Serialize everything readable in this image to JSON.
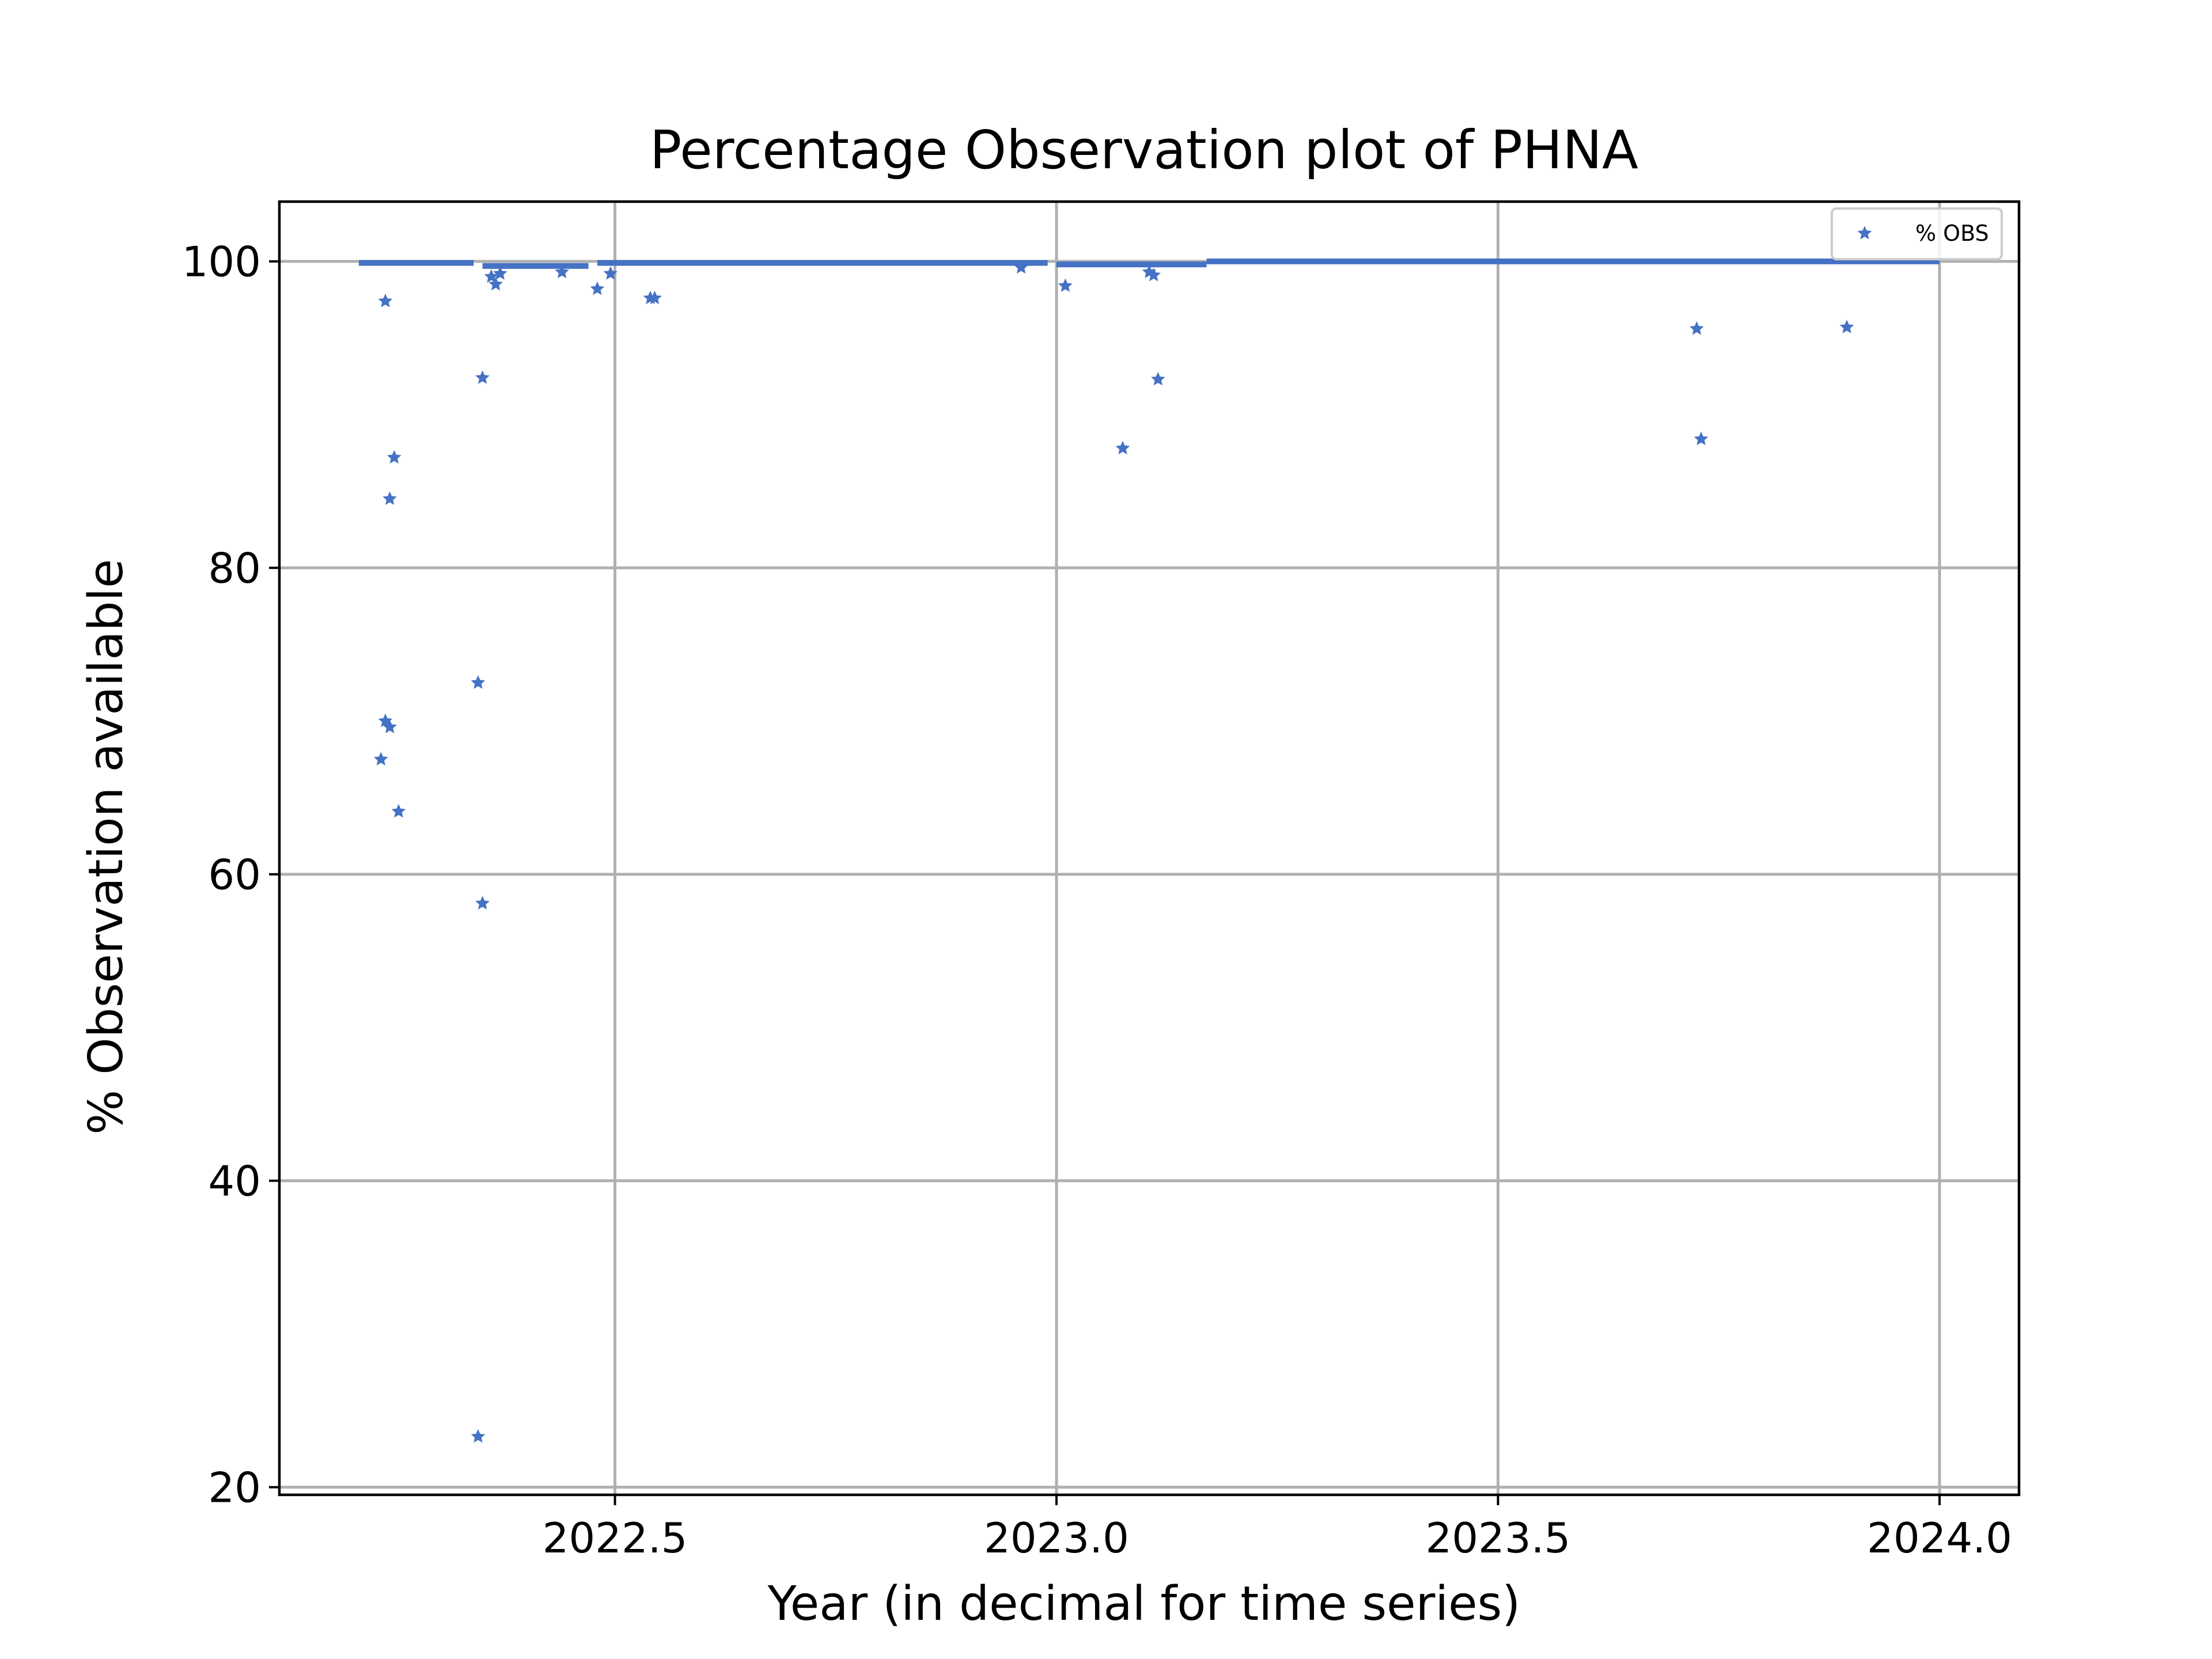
{
  "chart_data": {
    "type": "scatter",
    "title": "Percentage Observation plot of PHNA",
    "xlabel": "Year (in decimal for time series)",
    "ylabel": "% Observation available",
    "xlim": [
      2022.12,
      2024.09
    ],
    "ylim": [
      19.5,
      103.9
    ],
    "x_ticks": [
      2022.5,
      2023.0,
      2023.5,
      2024.0
    ],
    "x_tick_labels": [
      "2022.5",
      "2023.0",
      "2023.5",
      "2024.0"
    ],
    "y_ticks": [
      20,
      40,
      60,
      80,
      100
    ],
    "y_tick_labels": [
      "20",
      "40",
      "60",
      "80",
      "100"
    ],
    "grid": true,
    "legend_position": "top-right",
    "series": [
      {
        "name": "% OBS",
        "color": "#4472c4",
        "marker": "star",
        "dense_segments": [
          {
            "x_start": 2022.21,
            "x_end": 2022.34,
            "y": 99.9
          },
          {
            "x_start": 2022.35,
            "x_end": 2022.47,
            "y": 99.7
          },
          {
            "x_start": 2022.48,
            "x_end": 2022.99,
            "y": 99.9
          },
          {
            "x_start": 2023.0,
            "x_end": 2023.17,
            "y": 99.8
          },
          {
            "x_start": 2023.17,
            "x_end": 2024.0,
            "y": 100.0
          }
        ],
        "points": [
          {
            "x": 2022.24,
            "y": 97.4
          },
          {
            "x": 2022.245,
            "y": 84.5
          },
          {
            "x": 2022.25,
            "y": 87.2
          },
          {
            "x": 2022.24,
            "y": 70.0
          },
          {
            "x": 2022.245,
            "y": 69.6
          },
          {
            "x": 2022.235,
            "y": 67.5
          },
          {
            "x": 2022.255,
            "y": 64.1
          },
          {
            "x": 2022.35,
            "y": 92.4
          },
          {
            "x": 2022.345,
            "y": 72.5
          },
          {
            "x": 2022.35,
            "y": 58.1
          },
          {
            "x": 2022.345,
            "y": 23.3
          },
          {
            "x": 2022.36,
            "y": 99.0
          },
          {
            "x": 2022.365,
            "y": 98.5
          },
          {
            "x": 2022.37,
            "y": 99.2
          },
          {
            "x": 2022.44,
            "y": 99.3
          },
          {
            "x": 2022.48,
            "y": 98.2
          },
          {
            "x": 2022.495,
            "y": 99.2
          },
          {
            "x": 2022.54,
            "y": 97.6
          },
          {
            "x": 2022.545,
            "y": 97.6
          },
          {
            "x": 2022.96,
            "y": 99.6
          },
          {
            "x": 2023.01,
            "y": 98.4
          },
          {
            "x": 2023.075,
            "y": 87.8
          },
          {
            "x": 2023.105,
            "y": 99.3
          },
          {
            "x": 2023.11,
            "y": 99.1
          },
          {
            "x": 2023.115,
            "y": 92.3
          },
          {
            "x": 2023.725,
            "y": 95.6
          },
          {
            "x": 2023.73,
            "y": 88.4
          },
          {
            "x": 2023.895,
            "y": 95.7
          }
        ]
      }
    ]
  }
}
